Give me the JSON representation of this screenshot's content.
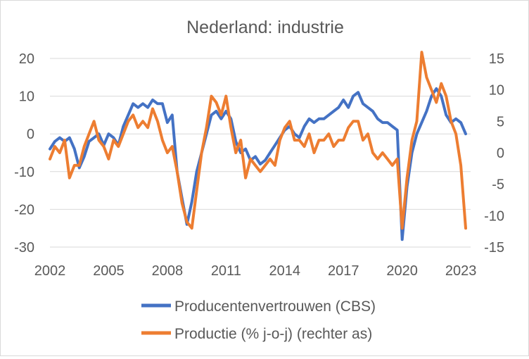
{
  "chart_data": {
    "type": "line",
    "title": "Nederland: industrie",
    "xlabel": "",
    "ylabel": "",
    "x_tick_labels": [
      "2002",
      "2005",
      "2008",
      "2011",
      "2014",
      "2017",
      "2020",
      "2023"
    ],
    "x_tick_years": [
      2002,
      2005,
      2008,
      2011,
      2014,
      2017,
      2020,
      2023
    ],
    "xlim": [
      2002,
      2023.5
    ],
    "ylim_left": [
      -30,
      20
    ],
    "ylim_right": [
      -15,
      15
    ],
    "y_ticks_left": [
      -30,
      -20,
      -10,
      0,
      10,
      20
    ],
    "y_ticks_right": [
      -15,
      -10,
      -5,
      0,
      5,
      10,
      15
    ],
    "grid": true,
    "legend_position": "bottom",
    "colors": {
      "series_1": "#4472c4",
      "series_2": "#ed7d31",
      "grid": "#d9d9d9",
      "text": "#595959"
    },
    "series": [
      {
        "name": "Producentenvertrouwen (CBS)",
        "axis": "left",
        "x": [
          2002.0,
          2002.25,
          2002.5,
          2002.75,
          2003.0,
          2003.25,
          2003.5,
          2003.75,
          2004.0,
          2004.25,
          2004.5,
          2004.75,
          2005.0,
          2005.25,
          2005.5,
          2005.75,
          2006.0,
          2006.25,
          2006.5,
          2006.75,
          2007.0,
          2007.25,
          2007.5,
          2007.75,
          2008.0,
          2008.25,
          2008.5,
          2008.75,
          2009.0,
          2009.25,
          2009.5,
          2009.75,
          2010.0,
          2010.25,
          2010.5,
          2010.75,
          2011.0,
          2011.25,
          2011.5,
          2011.75,
          2012.0,
          2012.25,
          2012.5,
          2012.75,
          2013.0,
          2013.25,
          2013.5,
          2013.75,
          2014.0,
          2014.25,
          2014.5,
          2014.75,
          2015.0,
          2015.25,
          2015.5,
          2015.75,
          2016.0,
          2016.25,
          2016.5,
          2016.75,
          2017.0,
          2017.25,
          2017.5,
          2017.75,
          2018.0,
          2018.25,
          2018.5,
          2018.75,
          2019.0,
          2019.25,
          2019.5,
          2019.75,
          2020.0,
          2020.25,
          2020.5,
          2020.75,
          2021.0,
          2021.25,
          2021.5,
          2021.75,
          2022.0,
          2022.25,
          2022.5,
          2022.75,
          2023.0,
          2023.25
        ],
        "y": [
          -4,
          -2,
          -1,
          -2,
          -1,
          -4,
          -9,
          -6,
          -2,
          -1,
          0,
          -3,
          0,
          -1,
          -3,
          2,
          5,
          8,
          7,
          8,
          7,
          9,
          8,
          8,
          3,
          5,
          -10,
          -17,
          -24,
          -18,
          -10,
          -5,
          0,
          5,
          6,
          4,
          6,
          4,
          -2,
          -5,
          -4,
          -7,
          -6,
          -8,
          -7,
          -5,
          -3,
          -1,
          1,
          2,
          0,
          -1,
          2,
          4,
          3,
          4,
          4,
          5,
          6,
          7,
          9,
          7,
          10,
          11,
          8,
          7,
          6,
          4,
          3,
          3,
          2,
          1,
          -28,
          -14,
          -5,
          0,
          3,
          6,
          10,
          12,
          10,
          5,
          3,
          4,
          3,
          0
        ]
      },
      {
        "name": "Productie (% j-o-j) (rechter as)",
        "axis": "right",
        "x": [
          2002.0,
          2002.25,
          2002.5,
          2002.75,
          2003.0,
          2003.25,
          2003.5,
          2003.75,
          2004.0,
          2004.25,
          2004.5,
          2004.75,
          2005.0,
          2005.25,
          2005.5,
          2005.75,
          2006.0,
          2006.25,
          2006.5,
          2006.75,
          2007.0,
          2007.25,
          2007.5,
          2007.75,
          2008.0,
          2008.25,
          2008.5,
          2008.75,
          2009.0,
          2009.25,
          2009.5,
          2009.75,
          2010.0,
          2010.25,
          2010.5,
          2010.75,
          2011.0,
          2011.25,
          2011.5,
          2011.75,
          2012.0,
          2012.25,
          2012.5,
          2012.75,
          2013.0,
          2013.25,
          2013.5,
          2013.75,
          2014.0,
          2014.25,
          2014.5,
          2014.75,
          2015.0,
          2015.25,
          2015.5,
          2015.75,
          2016.0,
          2016.25,
          2016.5,
          2016.75,
          2017.0,
          2017.25,
          2017.5,
          2017.75,
          2018.0,
          2018.25,
          2018.5,
          2018.75,
          2019.0,
          2019.25,
          2019.5,
          2019.75,
          2020.0,
          2020.25,
          2020.5,
          2020.75,
          2021.0,
          2021.25,
          2021.5,
          2021.75,
          2022.0,
          2022.25,
          2022.5,
          2022.75,
          2023.0,
          2023.25
        ],
        "y": [
          -1,
          1,
          0,
          2,
          -4,
          -2,
          -2,
          1,
          3,
          5,
          2,
          1,
          -1,
          2,
          1,
          3,
          5,
          6,
          4,
          5,
          4,
          7,
          5,
          2,
          0,
          1,
          -3,
          -8,
          -11,
          -12,
          -6,
          0,
          4,
          9,
          8,
          6,
          9,
          4,
          0,
          2,
          -4,
          -1,
          -2,
          -3,
          -2,
          -1,
          -2,
          2,
          4,
          5,
          2,
          2,
          1,
          3,
          0,
          2,
          2,
          3,
          1,
          2,
          2,
          4,
          5,
          5,
          2,
          3,
          0,
          -1,
          0,
          -1,
          -2,
          -1,
          -12,
          -4,
          2,
          5,
          16,
          12,
          10,
          8,
          11,
          9,
          5,
          3,
          -2,
          -12
        ]
      }
    ]
  }
}
